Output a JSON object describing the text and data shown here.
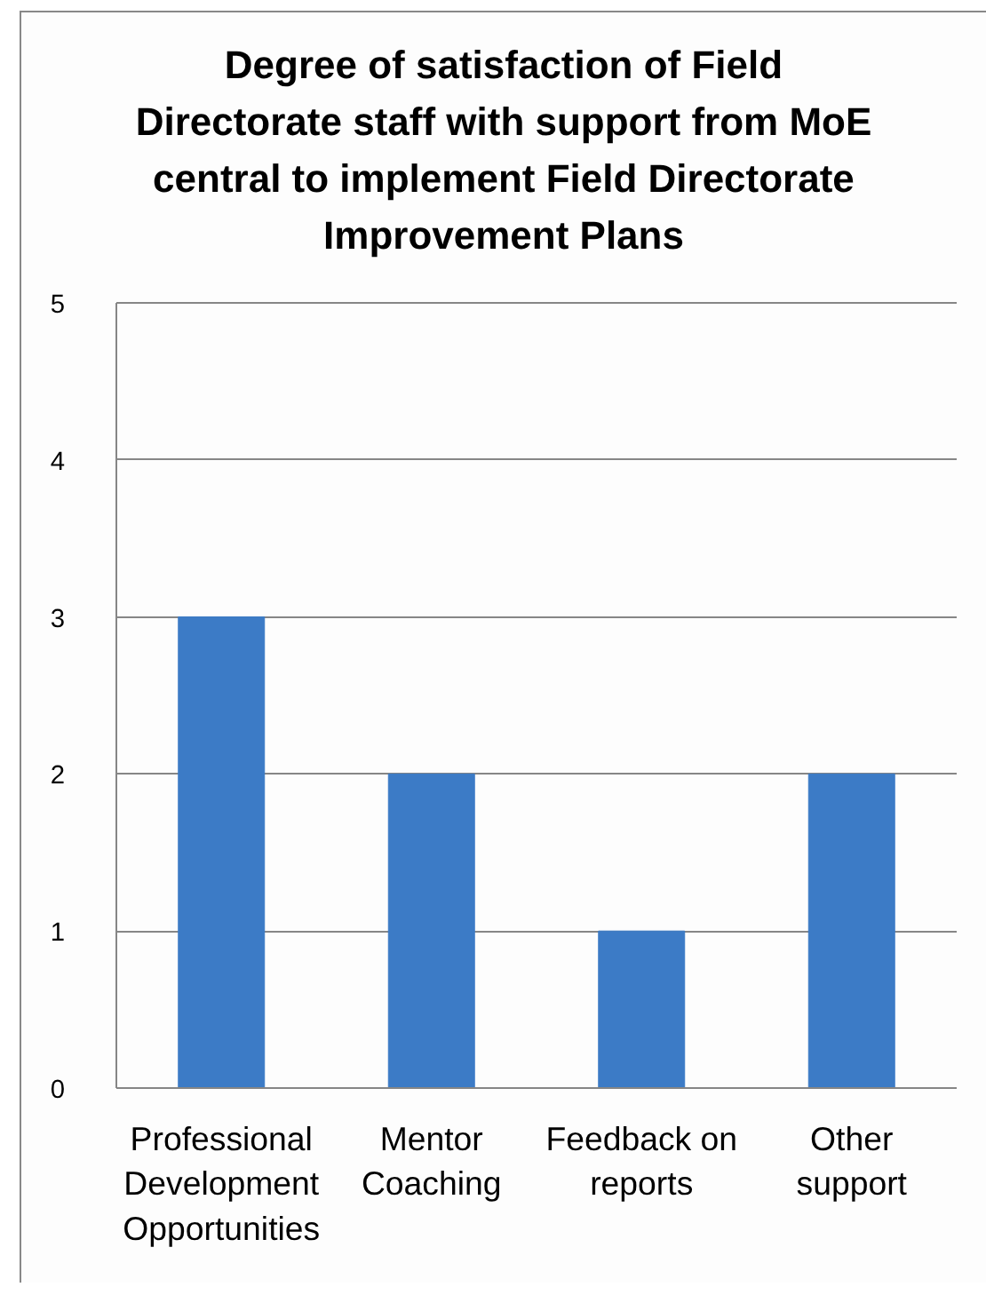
{
  "chart_data": {
    "type": "bar",
    "title": "Degree of satisfaction of Field Directorate staff with support from MoE central to implement Field Directorate Improvement Plans",
    "categories": [
      "Professional Development Opportunities",
      "Mentor Coaching",
      "Feedback on reports",
      "Other support"
    ],
    "values": [
      3,
      2,
      1,
      2
    ],
    "color": "#3c7bc6",
    "ylim": [
      0,
      5
    ],
    "yticks": [
      0,
      1,
      2,
      3,
      4,
      5
    ],
    "grid": "y"
  }
}
